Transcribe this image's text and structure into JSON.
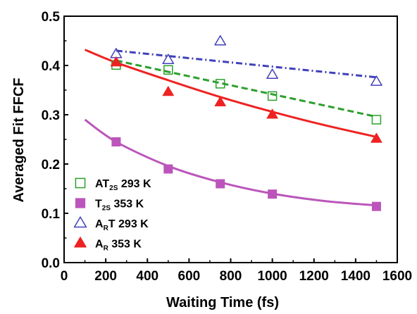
{
  "chart_data": {
    "type": "scatter",
    "xlabel": "Waiting Time (fs)",
    "ylabel": "Averaged Fit FFCF",
    "xlim": [
      0,
      1600
    ],
    "ylim": [
      0.0,
      0.5
    ],
    "x_ticks": [
      "0",
      "200",
      "400",
      "600",
      "800",
      "1000",
      "1200",
      "1400",
      "1600"
    ],
    "y_ticks": [
      "0.0",
      "0.1",
      "0.2",
      "0.3",
      "0.4",
      "0.5"
    ],
    "grid": false,
    "legend_position": "bottom-left",
    "series": [
      {
        "name": "AT2S 293 K",
        "legend": {
          "pre": "AT",
          "sub": "2S",
          "post": " 293 K"
        },
        "marker": "square-open",
        "color": "#2ca02c",
        "fit_style": "dashed",
        "x": [
          250,
          500,
          750,
          1000,
          1500
        ],
        "y": [
          0.401,
          0.391,
          0.363,
          0.338,
          0.29
        ],
        "fit": {
          "x": [
            250,
            1500
          ],
          "y": [
            0.41,
            0.296
          ]
        }
      },
      {
        "name": "T2S 353 K",
        "legend": {
          "pre": "T",
          "sub": "2S",
          "post": " 353 K"
        },
        "marker": "square-filled",
        "color": "#bb55bb",
        "fit_style": "solid",
        "x": [
          250,
          500,
          750,
          1000,
          1500
        ],
        "y": [
          0.245,
          0.19,
          0.16,
          0.139,
          0.114
        ],
        "fit": {
          "x": [
            100,
            250,
            500,
            750,
            1000,
            1250,
            1500
          ],
          "y": [
            0.29,
            0.245,
            0.196,
            0.163,
            0.14,
            0.125,
            0.116
          ]
        }
      },
      {
        "name": "ART 293 K",
        "legend": {
          "pre": "A",
          "sub": "R",
          "post": "T 293 K"
        },
        "marker": "triangle-open",
        "color": "#4040bb",
        "fit_style": "dash-dot",
        "x": [
          250,
          500,
          750,
          1000,
          1500
        ],
        "y": [
          0.423,
          0.411,
          0.449,
          0.381,
          0.367
        ],
        "fit": {
          "x": [
            250,
            1500
          ],
          "y": [
            0.43,
            0.376
          ]
        }
      },
      {
        "name": "AR 353 K",
        "legend": {
          "pre": "A",
          "sub": "R",
          "post": " 353 K"
        },
        "marker": "triangle-filled",
        "color": "#ee2222",
        "fit_style": "solid",
        "x": [
          250,
          500,
          750,
          1000,
          1500
        ],
        "y": [
          0.406,
          0.346,
          0.325,
          0.3,
          0.251
        ],
        "fit": {
          "x": [
            100,
            250,
            500,
            750,
            1000,
            1250,
            1500
          ],
          "y": [
            0.432,
            0.406,
            0.37,
            0.336,
            0.306,
            0.279,
            0.255
          ]
        }
      }
    ]
  }
}
